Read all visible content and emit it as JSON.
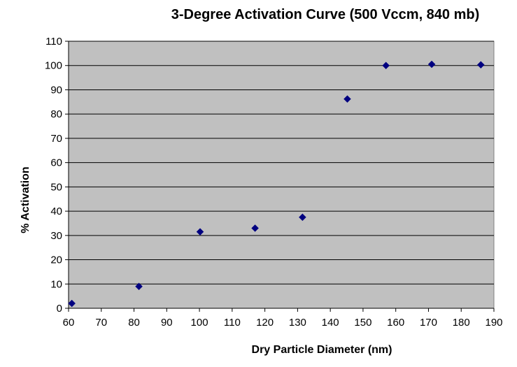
{
  "chart_data": {
    "type": "scatter",
    "title": "3-Degree Activation Curve (500 Vccm, 840 mb)",
    "xlabel": "Dry Particle Diameter (nm)",
    "ylabel": "% Activation",
    "xlim": [
      60,
      190
    ],
    "ylim": [
      0,
      110
    ],
    "x_ticks": [
      "60",
      "70",
      "80",
      "90",
      "100",
      "110",
      "120",
      "130",
      "140",
      "150",
      "160",
      "170",
      "180",
      "190"
    ],
    "y_ticks": [
      "0",
      "10",
      "20",
      "30",
      "40",
      "50",
      "60",
      "70",
      "80",
      "90",
      "100",
      "110"
    ],
    "grid": "horizontal",
    "legend": "none",
    "plot_background": "#c0c0c0",
    "marker_color": "#000080",
    "marker": "diamond",
    "series": [
      {
        "x": [
          61,
          81.5,
          100.2,
          117,
          131.5,
          145.2,
          157,
          171,
          186
        ],
        "y": [
          2,
          9,
          31.5,
          33,
          37.5,
          86.2,
          100,
          100.5,
          100.3
        ]
      }
    ]
  }
}
